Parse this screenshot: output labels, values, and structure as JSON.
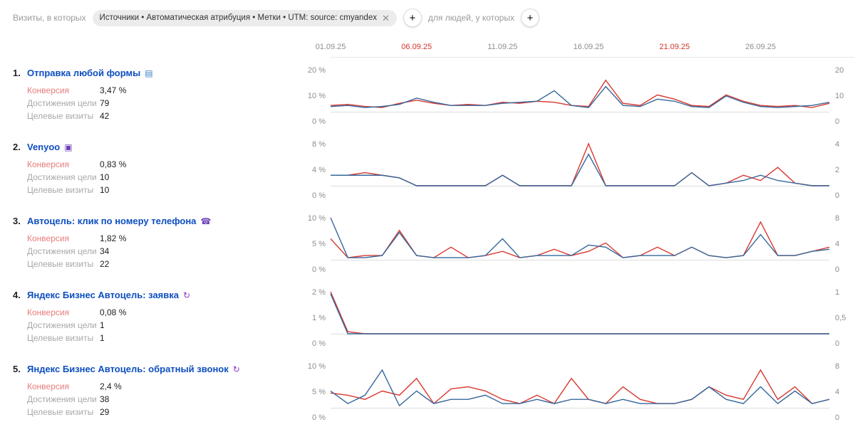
{
  "colors": {
    "red_line": "#d8382f",
    "blue_line": "#35679b",
    "accent_date": "#d2352c"
  },
  "header": {
    "visits_label": "Визиты, в которых",
    "filter_chip": "Источники • Автоматическая атрибуция • Метки • UTM: source: cmyandex",
    "people_label": "для людей, у которых",
    "add_button": "+"
  },
  "date_axis": [
    {
      "label": "01.09.25",
      "day": 1,
      "red": false
    },
    {
      "label": "06.09.25",
      "day": 6,
      "red": true
    },
    {
      "label": "11.09.25",
      "day": 11,
      "red": false
    },
    {
      "label": "16.09.25",
      "day": 16,
      "red": false
    },
    {
      "label": "21.09.25",
      "day": 21,
      "red": true
    },
    {
      "label": "26.09.25",
      "day": 26,
      "red": false
    }
  ],
  "goals": [
    {
      "num": "1.",
      "title": "Отправка любой формы",
      "icon": {
        "name": "form-icon",
        "glyph": "▤",
        "color": "#3b7dc8"
      },
      "metrics": [
        {
          "label": "Конверсия",
          "value": "3,47 %"
        },
        {
          "label": "Достижения цели",
          "value": "79"
        },
        {
          "label": "Целевые визиты",
          "value": "42"
        }
      ],
      "chart": {
        "type": "line",
        "ymax": 20,
        "left_ticks": [
          "20 %",
          "10 %",
          "0 %"
        ],
        "right_ticks": [
          "20",
          "10",
          "0"
        ],
        "series": [
          {
            "name": "conversion-red",
            "values": [
              3,
              3.5,
              2.5,
              2,
              4,
              5.5,
              4,
              3,
              3.5,
              3,
              4.5,
              4,
              5,
              4.5,
              3,
              2.5,
              15,
              4,
              3,
              8,
              6,
              3,
              2.5,
              8,
              5,
              3,
              2.5,
              3,
              2,
              4
            ]
          },
          {
            "name": "visits-blue",
            "values": [
              2.5,
              3,
              2,
              2.5,
              3.5,
              6.5,
              4.5,
              3,
              3,
              3,
              4,
              4.5,
              5,
              10,
              3,
              2,
              12,
              3,
              2.5,
              6,
              5,
              2.5,
              2,
              7.5,
              4.5,
              2.5,
              2,
              2.5,
              3,
              4.5
            ]
          }
        ]
      }
    },
    {
      "num": "2.",
      "title": "Venyoo",
      "icon": {
        "name": "venyoo-icon",
        "glyph": "▣",
        "color": "#6a3fb5"
      },
      "metrics": [
        {
          "label": "Конверсия",
          "value": "0,83 %"
        },
        {
          "label": "Достижения цели",
          "value": "10"
        },
        {
          "label": "Целевые визиты",
          "value": "10"
        }
      ],
      "chart": {
        "type": "line",
        "ymax": 8,
        "left_ticks": [
          "8 %",
          "4 %",
          "0 %"
        ],
        "right_ticks": [
          "4",
          "2",
          "0"
        ],
        "series": [
          {
            "name": "conversion-red",
            "values": [
              2,
              2,
              2.5,
              2,
              1.5,
              0,
              0,
              0,
              0,
              0,
              2,
              0,
              0,
              0,
              0,
              8,
              0,
              0,
              0,
              0,
              0,
              2.5,
              0,
              0.5,
              2,
              1,
              3.5,
              0.5,
              0,
              0
            ]
          },
          {
            "name": "visits-blue",
            "values": [
              2,
              2,
              2,
              2,
              1.5,
              0,
              0,
              0,
              0,
              0,
              2,
              0,
              0,
              0,
              0,
              6,
              0,
              0,
              0,
              0,
              0,
              2.5,
              0,
              0.5,
              1,
              2,
              1,
              0.5,
              0,
              0
            ]
          }
        ]
      }
    },
    {
      "num": "3.",
      "title": "Автоцель: клик по номеру телефона",
      "icon": {
        "name": "phone-icon",
        "glyph": "☎",
        "color": "#6a3fb5"
      },
      "metrics": [
        {
          "label": "Конверсия",
          "value": "1,82 %"
        },
        {
          "label": "Достижения цели",
          "value": "34"
        },
        {
          "label": "Целевые визиты",
          "value": "22"
        }
      ],
      "chart": {
        "type": "line",
        "ymax": 10,
        "left_ticks": [
          "10 %",
          "5 %",
          "0 %"
        ],
        "right_ticks": [
          "8",
          "4",
          "0"
        ],
        "series": [
          {
            "name": "conversion-red",
            "values": [
              5,
              0.5,
              1,
              1,
              7,
              1,
              0.5,
              3,
              0.5,
              1,
              2,
              0.5,
              1,
              2.5,
              1,
              2,
              4,
              0.5,
              1,
              3,
              1,
              3,
              1,
              0.5,
              1,
              9,
              1,
              1,
              2,
              3
            ]
          },
          {
            "name": "visits-blue",
            "values": [
              10,
              0.5,
              0.5,
              1,
              6.5,
              1,
              0.5,
              0.5,
              0.5,
              1,
              5,
              0.5,
              1,
              1,
              1,
              3.5,
              3,
              0.5,
              1,
              1,
              1,
              3,
              1,
              0.5,
              1,
              6,
              1,
              1,
              2,
              2.5
            ]
          }
        ]
      }
    },
    {
      "num": "4.",
      "title": "Яндекс Бизнес Автоцель: заявка",
      "icon": {
        "name": "autogoal-icon",
        "glyph": "↻",
        "color": "#8a36c9"
      },
      "metrics": [
        {
          "label": "Конверсия",
          "value": "0,08 %"
        },
        {
          "label": "Достижения цели",
          "value": "1"
        },
        {
          "label": "Целевые визиты",
          "value": "1"
        }
      ],
      "chart": {
        "type": "line",
        "ymax": 2,
        "left_ticks": [
          "2 %",
          "1 %",
          "0 %"
        ],
        "right_ticks": [
          "1",
          "0,5",
          "0"
        ],
        "series": [
          {
            "name": "conversion-red",
            "values": [
              2,
              0.1,
              0,
              0,
              0,
              0,
              0,
              0,
              0,
              0,
              0,
              0,
              0,
              0,
              0,
              0,
              0,
              0,
              0,
              0,
              0,
              0,
              0,
              0,
              0,
              0,
              0,
              0,
              0,
              0
            ]
          },
          {
            "name": "visits-blue",
            "values": [
              1.9,
              0,
              0,
              0,
              0,
              0,
              0,
              0,
              0,
              0,
              0,
              0,
              0,
              0,
              0,
              0,
              0,
              0,
              0,
              0,
              0,
              0,
              0,
              0,
              0,
              0,
              0,
              0,
              0,
              0
            ]
          }
        ]
      }
    },
    {
      "num": "5.",
      "title": "Яндекс Бизнес Автоцель: обратный звонок",
      "icon": {
        "name": "autogoal-icon",
        "glyph": "↻",
        "color": "#8a36c9"
      },
      "metrics": [
        {
          "label": "Конверсия",
          "value": "2,4 %"
        },
        {
          "label": "Достижения цели",
          "value": "38"
        },
        {
          "label": "Целевые визиты",
          "value": "29"
        }
      ],
      "chart": {
        "type": "line",
        "ymax": 10,
        "left_ticks": [
          "10 %",
          "5 %",
          "0 %"
        ],
        "right_ticks": [
          "8",
          "4",
          "0"
        ],
        "series": [
          {
            "name": "conversion-red",
            "values": [
              3.5,
              3,
              2,
              4,
              3,
              7,
              1,
              4.5,
              5,
              4,
              2,
              1,
              3,
              1,
              7,
              2,
              1,
              5,
              2,
              1,
              1,
              2,
              5,
              3,
              2,
              9,
              2,
              5,
              1,
              2
            ]
          },
          {
            "name": "visits-blue",
            "values": [
              4,
              1,
              3,
              9,
              0.5,
              4,
              1,
              2,
              2,
              3,
              1,
              1,
              2,
              1,
              2,
              2,
              1,
              2,
              1,
              1,
              1,
              2,
              5,
              2,
              1,
              5,
              1,
              4,
              1,
              2
            ]
          }
        ]
      }
    }
  ]
}
